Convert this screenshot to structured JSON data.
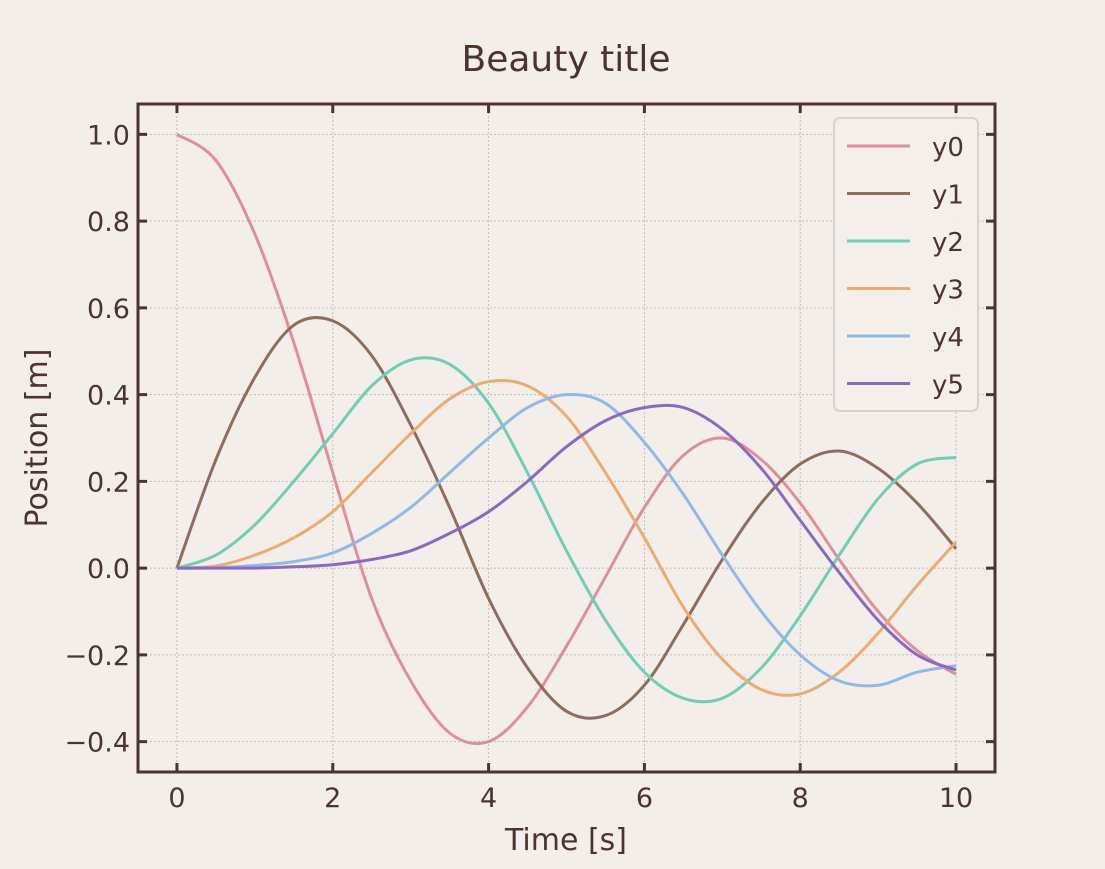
{
  "chart_data": {
    "type": "line",
    "title": "Beauty title",
    "xlabel": "Time [s]",
    "ylabel": "Position [m]",
    "xlim": [
      -0.5,
      10.5
    ],
    "ylim": [
      -0.47,
      1.07
    ],
    "xticks": [
      0,
      2,
      4,
      6,
      8,
      10
    ],
    "xtick_labels": [
      "0",
      "2",
      "4",
      "6",
      "8",
      "10"
    ],
    "yticks": [
      -0.4,
      -0.2,
      0.0,
      0.2,
      0.4,
      0.6,
      0.8,
      1.0
    ],
    "ytick_labels": [
      "−0.4",
      "−0.2",
      "0.0",
      "0.2",
      "0.4",
      "0.6",
      "0.8",
      "1.0"
    ],
    "grid": true,
    "legend_position": "top-right",
    "x": [
      0,
      0.5,
      1,
      1.5,
      2,
      2.5,
      3,
      3.5,
      4,
      4.5,
      5,
      5.5,
      6,
      6.5,
      7,
      7.5,
      8,
      8.5,
      9,
      9.5,
      10
    ],
    "series": [
      {
        "name": "y0",
        "color": "#dd8f9c",
        "values": [
          1.0,
          0.94,
          0.77,
          0.52,
          0.22,
          -0.07,
          -0.26,
          -0.38,
          -0.4,
          -0.32,
          -0.18,
          -0.02,
          0.14,
          0.26,
          0.3,
          0.25,
          0.15,
          0.02,
          -0.1,
          -0.19,
          -0.245
        ]
      },
      {
        "name": "y1",
        "color": "#8b6e5e",
        "values": [
          0.0,
          0.25,
          0.44,
          0.56,
          0.57,
          0.49,
          0.33,
          0.14,
          -0.07,
          -0.23,
          -0.33,
          -0.34,
          -0.27,
          -0.13,
          0.02,
          0.15,
          0.24,
          0.27,
          0.23,
          0.15,
          0.045
        ]
      },
      {
        "name": "y2",
        "color": "#73ccb5",
        "values": [
          0.0,
          0.03,
          0.1,
          0.2,
          0.31,
          0.42,
          0.48,
          0.47,
          0.38,
          0.22,
          0.04,
          -0.12,
          -0.24,
          -0.3,
          -0.3,
          -0.23,
          -0.11,
          0.03,
          0.16,
          0.24,
          0.255
        ]
      },
      {
        "name": "y3",
        "color": "#e8ac74",
        "values": [
          0.0,
          0.005,
          0.03,
          0.07,
          0.13,
          0.22,
          0.31,
          0.39,
          0.43,
          0.42,
          0.35,
          0.22,
          0.07,
          -0.09,
          -0.21,
          -0.28,
          -0.29,
          -0.24,
          -0.15,
          -0.04,
          0.06
        ]
      },
      {
        "name": "y4",
        "color": "#92b8e6",
        "values": [
          0.0,
          0.001,
          0.006,
          0.015,
          0.035,
          0.08,
          0.14,
          0.22,
          0.3,
          0.37,
          0.4,
          0.38,
          0.29,
          0.17,
          0.03,
          -0.1,
          -0.2,
          -0.26,
          -0.27,
          -0.24,
          -0.225
        ]
      },
      {
        "name": "y5",
        "color": "#8a6ac0",
        "values": [
          0.0,
          0.0,
          0.0,
          0.003,
          0.008,
          0.02,
          0.04,
          0.08,
          0.13,
          0.2,
          0.28,
          0.34,
          0.37,
          0.37,
          0.32,
          0.23,
          0.11,
          -0.01,
          -0.12,
          -0.2,
          -0.235
        ]
      }
    ]
  },
  "colors": {
    "background": "#f4eeeb",
    "axis": "#4a342c",
    "grid": "#c2bcb8"
  }
}
